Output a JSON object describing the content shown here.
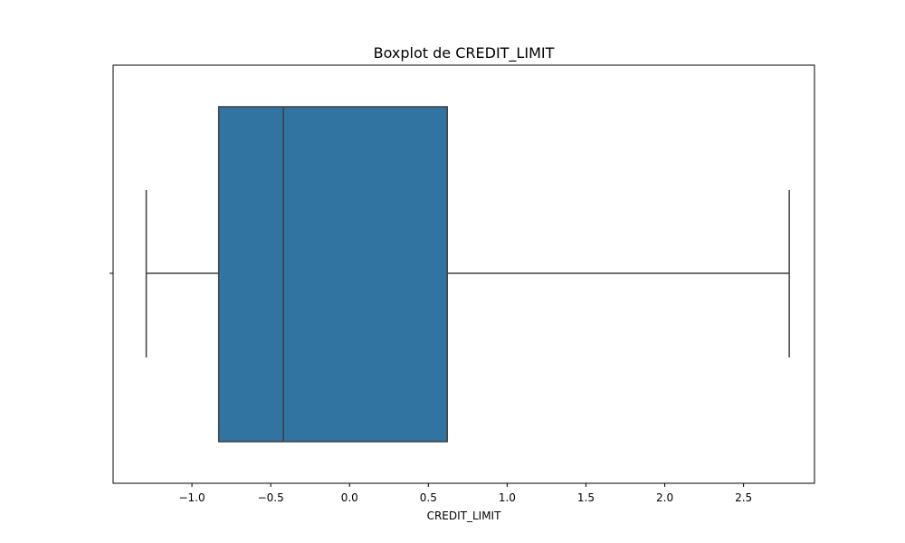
{
  "chart_data": {
    "type": "box",
    "title": "Boxplot de CREDIT_LIMIT",
    "xlabel": "CREDIT_LIMIT",
    "ylabel": "",
    "xlim": [
      -1.5,
      2.95
    ],
    "xticks": [
      -1.0,
      -0.5,
      0.0,
      0.5,
      1.0,
      1.5,
      2.0,
      2.5
    ],
    "xtick_labels": [
      "−1.0",
      "−0.5",
      "0.0",
      "0.5",
      "1.0",
      "1.5",
      "2.0",
      "2.5"
    ],
    "box": {
      "whisker_low": -1.29,
      "q1": -0.83,
      "median": -0.42,
      "q3": 0.62,
      "whisker_high": 2.79
    },
    "grid": false,
    "colors": {
      "box_fill": "#3274a1",
      "lines": "#3f3f3f",
      "axes": "#000000",
      "background": "#ffffff"
    }
  }
}
